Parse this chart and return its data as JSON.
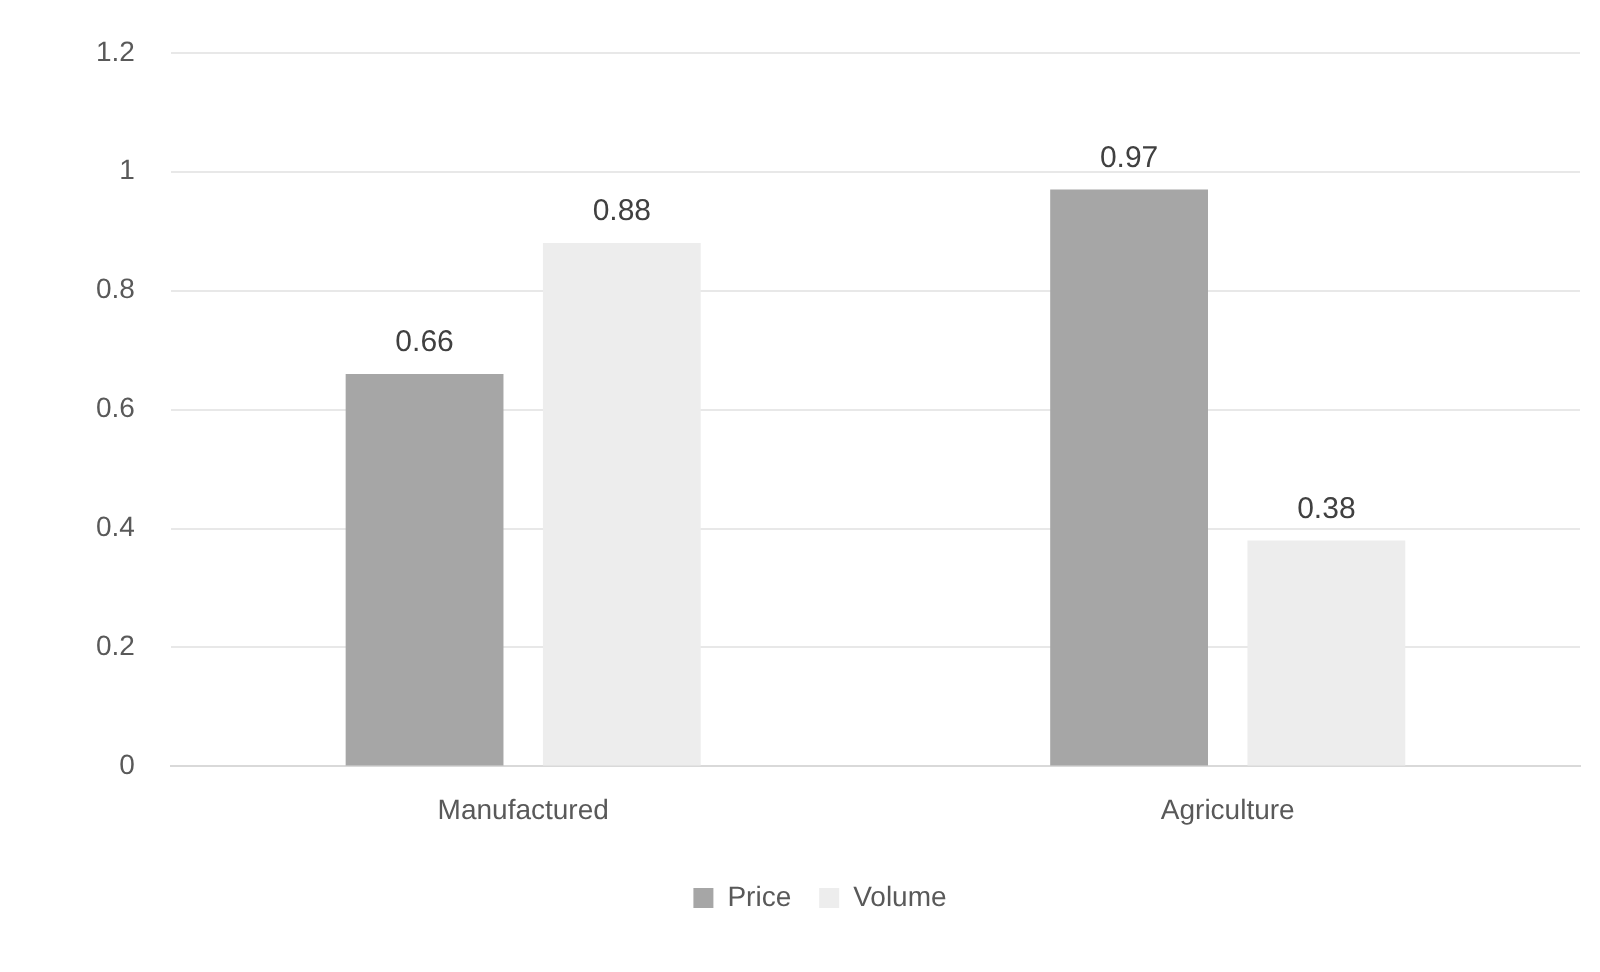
{
  "chart_data": {
    "type": "bar",
    "categories": [
      "Manufactured",
      "Agriculture"
    ],
    "series": [
      {
        "name": "Price",
        "color": "#a6a6a6",
        "values": [
          0.66,
          0.97
        ]
      },
      {
        "name": "Volume",
        "color": "#ededed",
        "values": [
          0.88,
          0.38
        ]
      }
    ],
    "ylim": [
      0,
      1.2
    ],
    "yticks": [
      0,
      0.2,
      0.4,
      0.6,
      0.8,
      1,
      1.2
    ],
    "grid": "y",
    "legend": "bottom",
    "data_labels": true
  }
}
